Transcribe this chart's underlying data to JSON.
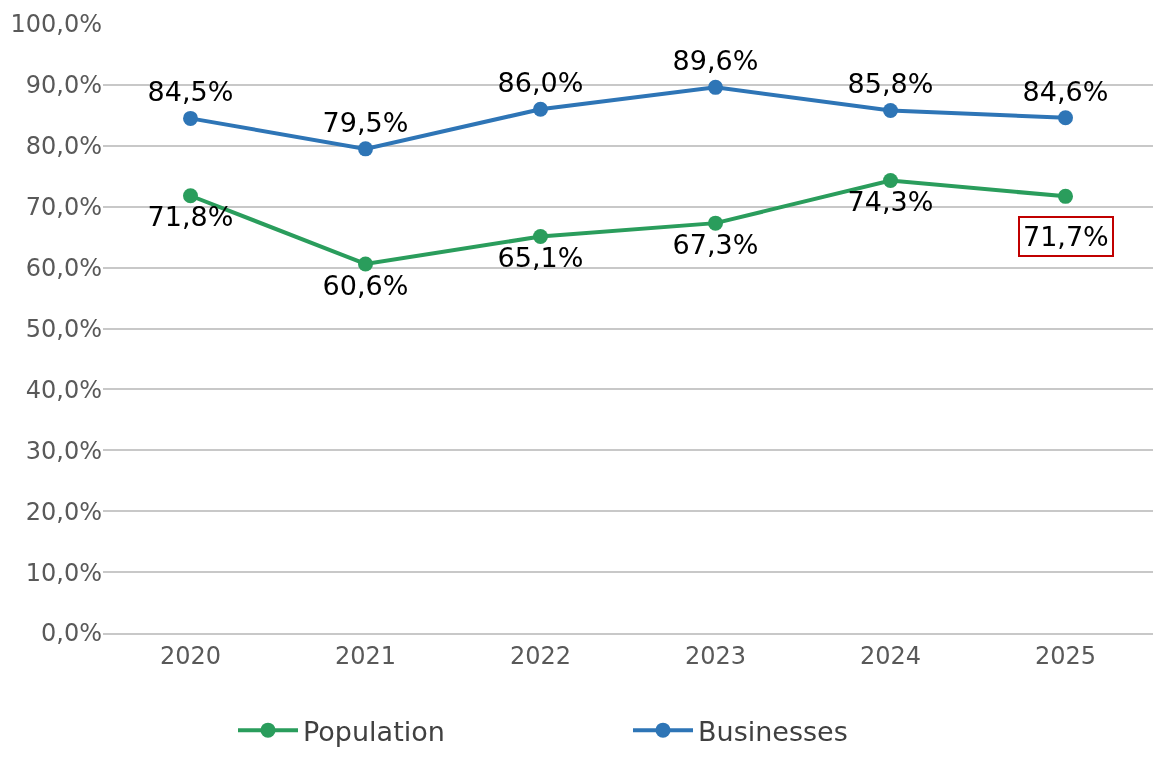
{
  "chart_data": {
    "type": "line",
    "categories": [
      "2020",
      "2021",
      "2022",
      "2023",
      "2024",
      "2025"
    ],
    "series": [
      {
        "name": "Population",
        "color": "#2a9d5c",
        "values": [
          71.8,
          60.6,
          65.1,
          67.3,
          74.3,
          71.7
        ],
        "value_labels": [
          "71,8%",
          "60,6%",
          "65,1%",
          "67,3%",
          "74,3%",
          null
        ]
      },
      {
        "name": "Businesses",
        "color": "#2e75b6",
        "values": [
          84.5,
          79.5,
          86.0,
          89.6,
          85.8,
          84.6
        ],
        "value_labels": [
          "84,5%",
          "79,5%",
          "86,0%",
          "89,6%",
          "85,8%",
          "84,6%"
        ]
      }
    ],
    "annotations": [
      {
        "text": "71,7%",
        "x": "2025",
        "y": 71.7
      }
    ],
    "ylim": [
      0,
      100
    ],
    "yticks": [
      {
        "value": 0,
        "label": "0,0%"
      },
      {
        "value": 10,
        "label": "10,0%"
      },
      {
        "value": 20,
        "label": "20,0%"
      },
      {
        "value": 30,
        "label": "30,0%"
      },
      {
        "value": 40,
        "label": "40,0%"
      },
      {
        "value": 50,
        "label": "50,0%"
      },
      {
        "value": 60,
        "label": "60,0%"
      },
      {
        "value": 70,
        "label": "70,0%"
      },
      {
        "value": 80,
        "label": "80,0%"
      },
      {
        "value": 90,
        "label": "90,0%"
      },
      {
        "value": 100,
        "label": "100,0%"
      }
    ],
    "grid": "y",
    "legend": "bottom",
    "marker": "circle",
    "line_style": "solid"
  }
}
